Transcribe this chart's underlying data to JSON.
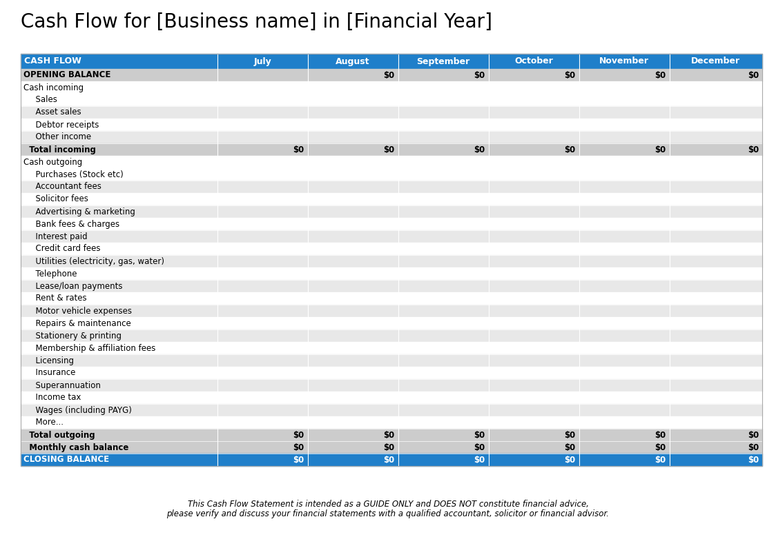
{
  "title": "Cash Flow for [Business name] in [Financial Year]",
  "title_fontsize": 20,
  "header_bg": "#1F7FCA",
  "header_text_color": "#FFFFFF",
  "columns": [
    "CASH FLOW",
    "July",
    "August",
    "September",
    "October",
    "November",
    "December"
  ],
  "rows": [
    {
      "label": "OPENING BALANCE",
      "type": "subheader",
      "values": [
        "",
        "$0",
        "$0",
        "$0",
        "$0",
        "$0"
      ]
    },
    {
      "label": "Cash incoming",
      "type": "section_header",
      "values": [
        "",
        "",
        "",
        "",
        "",
        ""
      ]
    },
    {
      "label": "  Sales",
      "type": "data_light",
      "values": [
        "",
        "",
        "",
        "",
        "",
        ""
      ]
    },
    {
      "label": "  Asset sales",
      "type": "data_gray",
      "values": [
        "",
        "",
        "",
        "",
        "",
        ""
      ]
    },
    {
      "label": "  Debtor receipts",
      "type": "data_light",
      "values": [
        "",
        "",
        "",
        "",
        "",
        ""
      ]
    },
    {
      "label": "  Other income",
      "type": "data_gray",
      "values": [
        "",
        "",
        "",
        "",
        "",
        ""
      ]
    },
    {
      "label": "  Total incoming",
      "type": "total_row",
      "values": [
        "$0",
        "$0",
        "$0",
        "$0",
        "$0",
        "$0"
      ]
    },
    {
      "label": "Cash outgoing",
      "type": "section_header",
      "values": [
        "",
        "",
        "",
        "",
        "",
        ""
      ]
    },
    {
      "label": "  Purchases (Stock etc)",
      "type": "data_light",
      "values": [
        "",
        "",
        "",
        "",
        "",
        ""
      ]
    },
    {
      "label": "  Accountant fees",
      "type": "data_gray",
      "values": [
        "",
        "",
        "",
        "",
        "",
        ""
      ]
    },
    {
      "label": "  Solicitor fees",
      "type": "data_light",
      "values": [
        "",
        "",
        "",
        "",
        "",
        ""
      ]
    },
    {
      "label": "  Advertising & marketing",
      "type": "data_gray",
      "values": [
        "",
        "",
        "",
        "",
        "",
        ""
      ]
    },
    {
      "label": "  Bank fees & charges",
      "type": "data_light",
      "values": [
        "",
        "",
        "",
        "",
        "",
        ""
      ]
    },
    {
      "label": "  Interest paid",
      "type": "data_gray",
      "values": [
        "",
        "",
        "",
        "",
        "",
        ""
      ]
    },
    {
      "label": "  Credit card fees",
      "type": "data_light",
      "values": [
        "",
        "",
        "",
        "",
        "",
        ""
      ]
    },
    {
      "label": "  Utilities (electricity, gas, water)",
      "type": "data_gray",
      "values": [
        "",
        "",
        "",
        "",
        "",
        ""
      ]
    },
    {
      "label": "  Telephone",
      "type": "data_light",
      "values": [
        "",
        "",
        "",
        "",
        "",
        ""
      ]
    },
    {
      "label": "  Lease/loan payments",
      "type": "data_gray",
      "values": [
        "",
        "",
        "",
        "",
        "",
        ""
      ]
    },
    {
      "label": "  Rent & rates",
      "type": "data_light",
      "values": [
        "",
        "",
        "",
        "",
        "",
        ""
      ]
    },
    {
      "label": "  Motor vehicle expenses",
      "type": "data_gray",
      "values": [
        "",
        "",
        "",
        "",
        "",
        ""
      ]
    },
    {
      "label": "  Repairs & maintenance",
      "type": "data_light",
      "values": [
        "",
        "",
        "",
        "",
        "",
        ""
      ]
    },
    {
      "label": "  Stationery & printing",
      "type": "data_gray",
      "values": [
        "",
        "",
        "",
        "",
        "",
        ""
      ]
    },
    {
      "label": "  Membership & affiliation fees",
      "type": "data_light",
      "values": [
        "",
        "",
        "",
        "",
        "",
        ""
      ]
    },
    {
      "label": "  Licensing",
      "type": "data_gray",
      "values": [
        "",
        "",
        "",
        "",
        "",
        ""
      ]
    },
    {
      "label": "  Insurance",
      "type": "data_light",
      "values": [
        "",
        "",
        "",
        "",
        "",
        ""
      ]
    },
    {
      "label": "  Superannuation",
      "type": "data_gray",
      "values": [
        "",
        "",
        "",
        "",
        "",
        ""
      ]
    },
    {
      "label": "  Income tax",
      "type": "data_light",
      "values": [
        "",
        "",
        "",
        "",
        "",
        ""
      ]
    },
    {
      "label": "  Wages (including PAYG)",
      "type": "data_gray",
      "values": [
        "",
        "",
        "",
        "",
        "",
        ""
      ]
    },
    {
      "label": "  More...",
      "type": "data_light",
      "values": [
        "",
        "",
        "",
        "",
        "",
        ""
      ]
    },
    {
      "label": "  Total outgoing",
      "type": "total_row",
      "values": [
        "$0",
        "$0",
        "$0",
        "$0",
        "$0",
        "$0"
      ]
    },
    {
      "label": "  Monthly cash balance",
      "type": "bold_row",
      "values": [
        "$0",
        "$0",
        "$0",
        "$0",
        "$0",
        "$0"
      ]
    },
    {
      "label": "CLOSING BALANCE",
      "type": "closing_row",
      "values": [
        "$0",
        "$0",
        "$0",
        "$0",
        "$0",
        "$0"
      ]
    }
  ],
  "footer_line1": "This Cash Flow Statement is intended as a GUIDE ONLY and DOES NOT constitute financial advice,",
  "footer_line2": "please verify and discuss your financial statements with a qualified accountant, solicitor or financial advisor.",
  "footer_fontsize": 8.5,
  "bg_color": "#FFFFFF",
  "type_styles": {
    "subheader": {
      "bg": "#CCCCCC",
      "fg": "#000000",
      "bold": true,
      "indent": 4
    },
    "section_header": {
      "bg": "#FFFFFF",
      "fg": "#000000",
      "bold": false,
      "indent": 4
    },
    "data_light": {
      "bg": "#FFFFFF",
      "fg": "#000000",
      "bold": false,
      "indent": 14
    },
    "data_gray": {
      "bg": "#E8E8E8",
      "fg": "#000000",
      "bold": false,
      "indent": 14
    },
    "total_row": {
      "bg": "#CCCCCC",
      "fg": "#000000",
      "bold": true,
      "indent": 4
    },
    "bold_row": {
      "bg": "#CCCCCC",
      "fg": "#000000",
      "bold": true,
      "indent": 4
    },
    "closing_row": {
      "bg": "#1F7FCA",
      "fg": "#FFFFFF",
      "bold": true,
      "indent": 4
    }
  }
}
